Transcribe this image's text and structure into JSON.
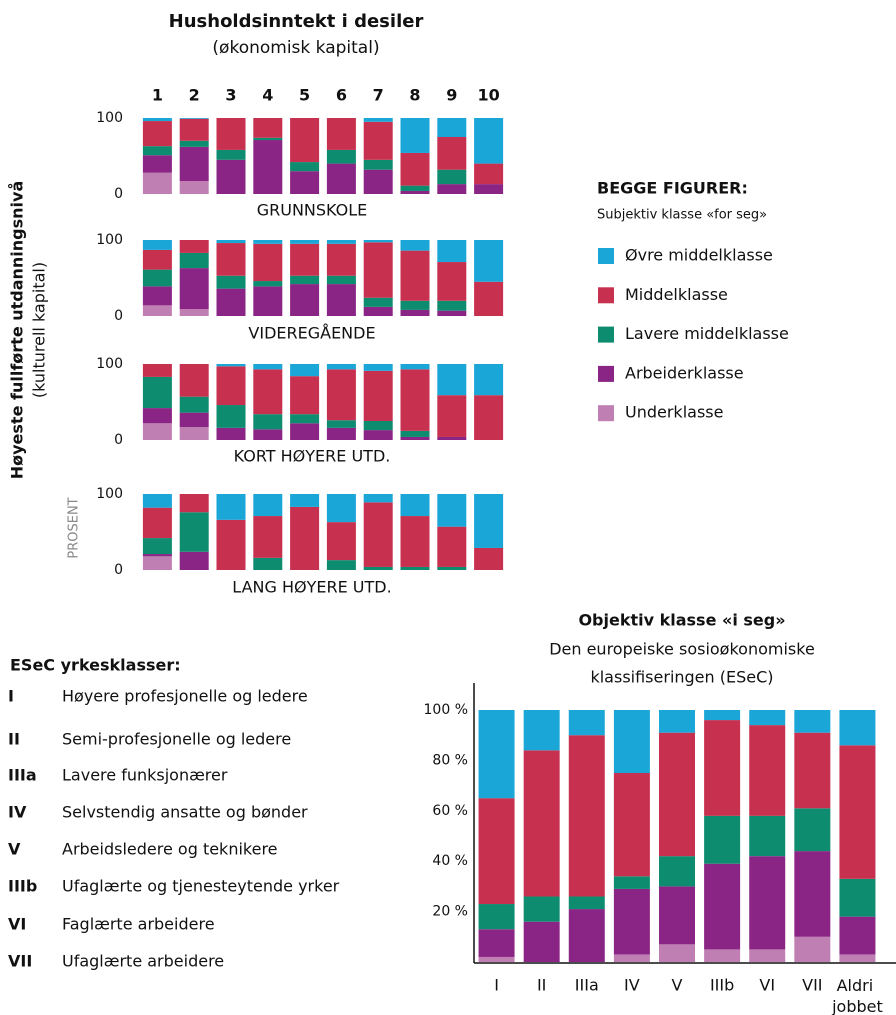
{
  "header": {
    "title": "Husholdsinntekt i desiler",
    "subtitle": "(økonomisk kapital)"
  },
  "y_label": {
    "title": "Høyeste fullførte utdanningsnivå",
    "subtitle": "(kulturell kapital)",
    "unit": "PROSENT"
  },
  "legend": {
    "title": "BEGGE FIGURER:",
    "subtitle": "Subjektiv klasse «for seg»",
    "items": [
      {
        "name": "Øvre middelklasse",
        "color": "#1ba6d8"
      },
      {
        "name": "Middelklasse",
        "color": "#c8304f"
      },
      {
        "name": "Lavere middelklasse",
        "color": "#0e8c6f"
      },
      {
        "name": "Arbeiderklasse",
        "color": "#8b2585"
      },
      {
        "name": "Underklasse",
        "color": "#c07fb3"
      }
    ]
  },
  "esec": {
    "title": "ESeC yrkesklasser:",
    "items": [
      {
        "code": "I",
        "label": "Høyere profesjonelle og ledere"
      },
      {
        "code": "II",
        "label": "Semi-profesjonelle og ledere"
      },
      {
        "code": "IIIa",
        "label": "Lavere funksjonærer"
      },
      {
        "code": "IV",
        "label": "Selvstendig ansatte og bønder"
      },
      {
        "code": "V",
        "label": "Arbeidsledere og teknikere"
      },
      {
        "code": "IIIb",
        "label": "Ufaglærte og tjenesteytende yrker"
      },
      {
        "code": "VI",
        "label": "Faglærte arbeidere"
      },
      {
        "code": "VII",
        "label": "Ufaglærte arbeidere"
      }
    ]
  },
  "chart_data": [
    {
      "type": "stacked-bar",
      "xlabel": "GRUNNSKOLE",
      "categories": [
        "1",
        "2",
        "3",
        "4",
        "5",
        "6",
        "7",
        "8",
        "9",
        "10"
      ],
      "ylim": [
        0,
        100
      ],
      "yticks": [
        0,
        100
      ],
      "series": [
        {
          "name": "Underklasse",
          "values": [
            28,
            17,
            0,
            0,
            0,
            0,
            0,
            0,
            0,
            0
          ]
        },
        {
          "name": "Arbeiderklasse",
          "values": [
            23,
            45,
            45,
            71,
            30,
            40,
            32,
            4,
            13,
            13
          ]
        },
        {
          "name": "Lavere middelklasse",
          "values": [
            12,
            8,
            13,
            3,
            12,
            18,
            13,
            7,
            19,
            0
          ]
        },
        {
          "name": "Middelklasse",
          "values": [
            33,
            29,
            42,
            26,
            58,
            42,
            50,
            43,
            43,
            27
          ]
        },
        {
          "name": "Øvre middelklasse",
          "values": [
            4,
            1,
            0,
            0,
            0,
            0,
            5,
            46,
            25,
            60
          ]
        }
      ]
    },
    {
      "type": "stacked-bar",
      "xlabel": "VIDEREGÅENDE",
      "ylim": [
        0,
        100
      ],
      "yticks": [
        0,
        100
      ],
      "series": [
        {
          "name": "Underklasse",
          "values": [
            14,
            9,
            0,
            0,
            0,
            0,
            0,
            0,
            0,
            0
          ]
        },
        {
          "name": "Arbeiderklasse",
          "values": [
            25,
            54,
            36,
            39,
            42,
            42,
            12,
            8,
            7,
            0
          ]
        },
        {
          "name": "Lavere middelklasse",
          "values": [
            22,
            20,
            17,
            7,
            11,
            11,
            12,
            12,
            13,
            0
          ]
        },
        {
          "name": "Middelklasse",
          "values": [
            26,
            17,
            43,
            49,
            42,
            42,
            73,
            66,
            51,
            45
          ]
        },
        {
          "name": "Øvre middelklasse",
          "values": [
            13,
            0,
            4,
            5,
            5,
            5,
            3,
            14,
            29,
            55
          ]
        }
      ]
    },
    {
      "type": "stacked-bar",
      "xlabel": "KORT HØYERE UTD.",
      "ylim": [
        0,
        100
      ],
      "yticks": [
        0,
        100
      ],
      "series": [
        {
          "name": "Underklasse",
          "values": [
            22,
            17,
            0,
            0,
            0,
            0,
            0,
            0,
            0,
            0
          ]
        },
        {
          "name": "Arbeiderklasse",
          "values": [
            20,
            19,
            16,
            14,
            22,
            16,
            13,
            4,
            4,
            0
          ]
        },
        {
          "name": "Lavere middelklasse",
          "values": [
            41,
            21,
            30,
            20,
            12,
            10,
            12,
            8,
            0,
            0
          ]
        },
        {
          "name": "Middelklasse",
          "values": [
            17,
            43,
            51,
            59,
            50,
            67,
            66,
            81,
            55,
            59
          ]
        },
        {
          "name": "Øvre middelklasse",
          "values": [
            0,
            0,
            3,
            7,
            16,
            7,
            9,
            7,
            41,
            41
          ]
        }
      ]
    },
    {
      "type": "stacked-bar",
      "xlabel": "LANG HØYERE UTD.",
      "ylim": [
        0,
        100
      ],
      "yticks": [
        0,
        100
      ],
      "series": [
        {
          "name": "Underklasse",
          "values": [
            18,
            0,
            0,
            0,
            0,
            0,
            0,
            0,
            0,
            0
          ]
        },
        {
          "name": "Arbeiderklasse",
          "values": [
            3,
            24,
            0,
            0,
            0,
            0,
            0,
            0,
            0,
            0
          ]
        },
        {
          "name": "Lavere middelklasse",
          "values": [
            21,
            52,
            0,
            16,
            0,
            13,
            4,
            4,
            4,
            0
          ]
        },
        {
          "name": "Middelklasse",
          "values": [
            40,
            24,
            66,
            55,
            83,
            50,
            85,
            67,
            53,
            29
          ]
        },
        {
          "name": "Øvre middelklasse",
          "values": [
            18,
            0,
            34,
            29,
            17,
            37,
            11,
            29,
            43,
            71
          ]
        }
      ]
    },
    {
      "type": "stacked-bar",
      "title": "Objektiv klasse «i seg»",
      "subtitle": [
        "Den europeiske sosioøkonomiske",
        "klassifiseringen (ESeC)"
      ],
      "categories": [
        "I",
        "II",
        "IIIa",
        "IV",
        "V",
        "IIIb",
        "VI",
        "VII",
        "Aldri jobbet"
      ],
      "ylim": [
        0,
        100
      ],
      "yticks": [
        {
          "value": 20,
          "label": "20 %"
        },
        {
          "value": 40,
          "label": "40 %"
        },
        {
          "value": 60,
          "label": "60 %"
        },
        {
          "value": 80,
          "label": "80 %"
        },
        {
          "value": 100,
          "label": "100 %"
        }
      ],
      "series": [
        {
          "name": "Underklasse",
          "values": [
            2,
            0,
            0,
            3,
            7,
            5,
            5,
            10,
            3
          ]
        },
        {
          "name": "Arbeiderklasse",
          "values": [
            11,
            16,
            21,
            26,
            23,
            34,
            37,
            34,
            15
          ]
        },
        {
          "name": "Lavere middelklasse",
          "values": [
            10,
            10,
            5,
            5,
            12,
            19,
            16,
            17,
            15
          ]
        },
        {
          "name": "Middelklasse",
          "values": [
            42,
            58,
            64,
            41,
            49,
            38,
            36,
            30,
            53
          ]
        },
        {
          "name": "Øvre middelklasse",
          "values": [
            35,
            16,
            10,
            25,
            9,
            4,
            6,
            9,
            14
          ]
        }
      ]
    }
  ]
}
